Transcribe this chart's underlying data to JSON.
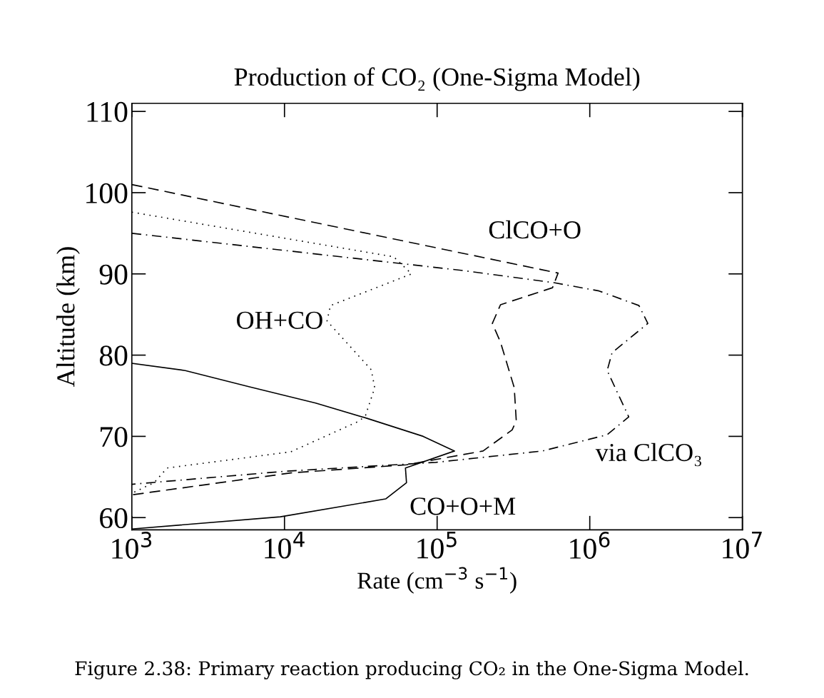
{
  "chart_data": {
    "type": "line",
    "title": "Production of CO₂ (One-Sigma Model)",
    "xlabel": "Rate (cm$^{−3}$ s$^{−1}$)",
    "ylabel": "Altitude (km)",
    "log": "x",
    "xlim": [
      1000,
      10000000
    ],
    "ylim": [
      58.5,
      111
    ],
    "xticks": [
      {
        "value": 1000,
        "label": "10$^{3}$"
      },
      {
        "value": 10000,
        "label": "10$^{4}$"
      },
      {
        "value": 100000,
        "label": "10$^{5}$"
      },
      {
        "value": 1000000,
        "label": "10$^{6}$"
      },
      {
        "value": 10000000,
        "label": "10$^{7}$"
      }
    ],
    "yticks": [
      60,
      70,
      80,
      90,
      100,
      110
    ],
    "grid": false,
    "legend": false,
    "series": [
      {
        "name": "CO+O+M",
        "color": "#000000",
        "line_style": "solid",
        "x": [
          1000,
          2240,
          5900,
          16000,
          35000,
          81000,
          130000,
          62000,
          63000,
          46000,
          9400,
          1000
        ],
        "values": [
          79.0,
          78.1,
          76.1,
          74.1,
          72.2,
          70.0,
          68.2,
          66.1,
          64.3,
          62.3,
          60.1,
          58.6
        ]
      },
      {
        "name": "OH+CO",
        "color": "#000000",
        "line_style": "dotted",
        "x": [
          1000,
          52000,
          68000,
          20000,
          19000,
          37000,
          39000,
          34000,
          31000,
          11000,
          1700,
          1400,
          1000
        ],
        "values": [
          97.6,
          92.1,
          90.0,
          86.1,
          84.2,
          78.2,
          76.0,
          72.6,
          71.9,
          68.1,
          66.1,
          64.3,
          63.0
        ]
      },
      {
        "name": "ClCO+O",
        "color": "#000000",
        "line_style": "dashed",
        "x": [
          1000,
          620000,
          570000,
          260000,
          230000,
          260000,
          320000,
          330000,
          310000,
          200000,
          63000,
          11000,
          1000
        ],
        "values": [
          101.0,
          90.1,
          88.3,
          86.2,
          83.9,
          81.6,
          76.0,
          71.9,
          70.8,
          68.2,
          66.5,
          65.5,
          62.8
        ]
      },
      {
        "name": "via ClCO₃",
        "color": "#000000",
        "line_style": "dashdot",
        "x": [
          1000,
          150000,
          590000,
          1150000,
          2100000,
          2400000,
          1400000,
          1300000,
          1800000,
          1300000,
          490000,
          98000,
          10000,
          1000
        ],
        "values": [
          95.0,
          90.4,
          88.9,
          87.9,
          86.1,
          83.9,
          80.3,
          78.1,
          72.4,
          70.2,
          68.2,
          66.8,
          65.7,
          64.1
        ]
      }
    ],
    "annotations": [
      "Figure 2.38: Primary reaction producing CO₂ in the One-Sigma Model."
    ]
  }
}
